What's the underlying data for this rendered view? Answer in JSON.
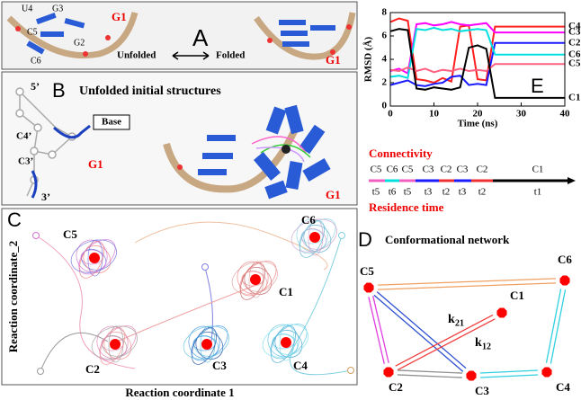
{
  "panel_a": {
    "letter": "A",
    "labels": [
      "U4",
      "G3",
      "C5",
      "G2",
      "C6"
    ],
    "g1": "G1",
    "unfolded": "Unfolded",
    "folded": "Folded",
    "g1_folded": "G1"
  },
  "panel_b": {
    "letter": "B",
    "title": "Unfolded initial structures",
    "labels": [
      "5’",
      "C4’",
      "C3’",
      "3’"
    ],
    "base": "Base",
    "g1": "G1",
    "g1_right": "G1"
  },
  "panel_c": {
    "letter": "C",
    "x_label": "Reaction coordinate 1",
    "y_label": "Reaction coordinate_2",
    "clusters": [
      "C5",
      "C6",
      "C1",
      "C2",
      "C3",
      "C4"
    ]
  },
  "panel_d": {
    "letter": "D",
    "title": "Conformational network",
    "nodes": [
      "C5",
      "C6",
      "C1",
      "C2",
      "C3",
      "C4"
    ],
    "rates": [
      {
        "symbol": "k",
        "subscript": "21"
      },
      {
        "symbol": "k",
        "subscript": "12"
      }
    ]
  },
  "timeline": {
    "connectivity": "Connectivity",
    "residence_time": "Residence time",
    "states": [
      "C5",
      "C6",
      "C5",
      "C3",
      "C2",
      "C3",
      "C2",
      "C1"
    ],
    "times": [
      "t5",
      "t6",
      "t5",
      "t3",
      "t2",
      "t3",
      "t2",
      "t1"
    ]
  },
  "chart_data": {
    "type": "line",
    "panel_label": "E",
    "x_label": "Time (ns)",
    "y_label": "RMSD (Å)",
    "x": [
      0,
      2,
      4,
      6,
      8,
      10,
      12,
      14,
      16,
      18,
      20,
      22,
      24,
      26,
      28,
      30,
      32,
      34,
      36,
      38,
      40
    ],
    "xlim": [
      0,
      40
    ],
    "ylim": [
      0,
      8
    ],
    "xticks": [
      0,
      10,
      20,
      30,
      40
    ],
    "yticks": [
      0,
      2,
      4,
      6,
      8
    ],
    "series": [
      {
        "name": "C4",
        "color": "#ff2020",
        "values": [
          7.2,
          7.5,
          7.3,
          2.3,
          2.2,
          2.0,
          2.4,
          2.1,
          6.8,
          6.9,
          2.3,
          2.2,
          6.8,
          6.8,
          6.8,
          6.8,
          6.8,
          6.8,
          6.8,
          6.8,
          6.8
        ]
      },
      {
        "name": "C3",
        "color": "#ff00ff",
        "values": [
          3.0,
          3.2,
          2.8,
          7.0,
          7.1,
          6.9,
          7.0,
          7.2,
          7.0,
          6.9,
          7.0,
          7.1,
          6.3,
          6.3,
          6.3,
          6.3,
          6.3,
          6.3,
          6.3,
          6.3,
          6.3
        ]
      },
      {
        "name": "C2",
        "color": "#1a1aff",
        "values": [
          1.8,
          2.0,
          2.2,
          1.8,
          1.7,
          1.9,
          2.0,
          2.5,
          2.6,
          1.8,
          1.9,
          1.8,
          5.4,
          5.4,
          5.4,
          5.4,
          5.4,
          5.4,
          5.4,
          5.4,
          5.4
        ]
      },
      {
        "name": "C6",
        "color": "#00e0e0",
        "values": [
          2.5,
          2.6,
          2.4,
          6.6,
          6.5,
          6.7,
          6.5,
          6.6,
          6.4,
          6.5,
          6.6,
          6.5,
          4.4,
          4.4,
          4.4,
          4.4,
          4.4,
          4.4,
          4.4,
          4.4,
          4.4
        ]
      },
      {
        "name": "C5",
        "color": "#ff6080",
        "values": [
          3.1,
          3.0,
          3.3,
          3.0,
          3.2,
          2.9,
          3.1,
          3.0,
          3.2,
          3.0,
          3.1,
          3.0,
          3.6,
          3.6,
          3.6,
          3.6,
          3.6,
          3.6,
          3.6,
          3.6,
          3.6
        ]
      },
      {
        "name": "C1",
        "color": "#000000",
        "values": [
          6.4,
          6.6,
          6.5,
          1.5,
          1.4,
          1.6,
          1.5,
          1.4,
          1.6,
          5.0,
          5.2,
          4.9,
          0.7,
          0.7,
          0.7,
          0.7,
          0.7,
          0.7,
          0.7,
          0.7,
          0.7
        ]
      }
    ]
  }
}
